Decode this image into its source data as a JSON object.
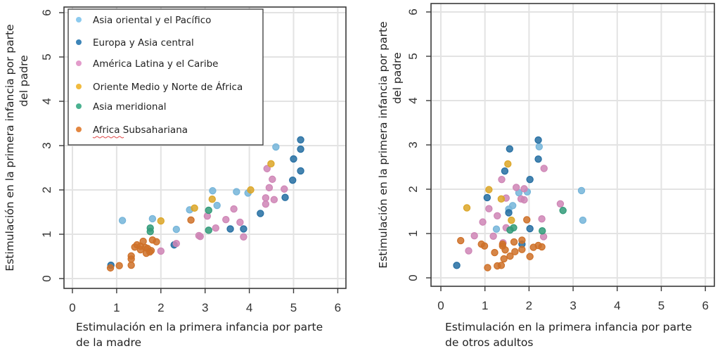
{
  "chart_data": [
    {
      "type": "scatter",
      "id": "madre",
      "title": "",
      "xlabel": [
        "Estimulación en la primera infancia por parte",
        "de la madre"
      ],
      "ylabel": [
        "Estimulación en la primera infancia por parte",
        "del padre"
      ],
      "xlim": [
        0,
        6
      ],
      "ylim": [
        0,
        6
      ],
      "xticks": [
        "0",
        "1",
        "2",
        "3",
        "4",
        "5",
        "6"
      ],
      "yticks": [
        "0",
        "1",
        "2",
        "3",
        "4",
        "5",
        "6"
      ],
      "grid": true,
      "legend_position": "top-left",
      "series": [
        {
          "name": "Asia oriental y el Pacífico",
          "color": "#7fc4ec",
          "points": [
            [
              4.6,
              2.97
            ],
            [
              3.97,
              1.93
            ],
            [
              3.71,
              1.96
            ],
            [
              3.17,
              1.98
            ],
            [
              3.27,
              1.65
            ],
            [
              1.13,
              1.31
            ],
            [
              1.81,
              1.35
            ],
            [
              2.35,
              1.11
            ],
            [
              2.65,
              1.55
            ]
          ]
        },
        {
          "name": "Europa y Asia central",
          "color": "#2878b0",
          "points": [
            [
              5.16,
              3.13
            ],
            [
              5.16,
              2.92
            ],
            [
              5.0,
              2.7
            ],
            [
              5.16,
              2.43
            ],
            [
              4.98,
              2.22
            ],
            [
              4.81,
              1.83
            ],
            [
              4.25,
              1.47
            ],
            [
              3.57,
              1.12
            ],
            [
              3.87,
              1.12
            ],
            [
              2.3,
              0.76
            ],
            [
              0.87,
              0.3
            ]
          ]
        },
        {
          "name": "América Latina y el Caribe",
          "color": "#e091c5",
          "points": [
            [
              4.4,
              2.48
            ],
            [
              4.52,
              2.24
            ],
            [
              4.45,
              2.05
            ],
            [
              4.79,
              2.02
            ],
            [
              4.37,
              1.82
            ],
            [
              4.56,
              1.78
            ],
            [
              4.37,
              1.68
            ],
            [
              3.05,
              1.41
            ],
            [
              3.65,
              1.57
            ],
            [
              3.47,
              1.33
            ],
            [
              3.79,
              1.27
            ],
            [
              3.24,
              1.14
            ],
            [
              3.87,
              0.94
            ],
            [
              2.86,
              0.97
            ],
            [
              2.89,
              0.95
            ],
            [
              2.35,
              0.79
            ],
            [
              2.0,
              0.62
            ]
          ]
        },
        {
          "name": "Oriente Medio y Norte de África",
          "color": "#efb42a",
          "points": [
            [
              4.49,
              2.59
            ],
            [
              4.03,
              2.0
            ],
            [
              3.16,
              1.79
            ],
            [
              2.0,
              1.3
            ],
            [
              2.76,
              1.59
            ]
          ]
        },
        {
          "name": "Asia meridional",
          "color": "#36a884",
          "points": [
            [
              3.08,
              1.54
            ],
            [
              3.08,
              1.09
            ],
            [
              1.76,
              1.14
            ],
            [
              1.76,
              1.06
            ]
          ]
        },
        {
          "name": "Africa Subsahariana",
          "color": "#e07a2c",
          "points": [
            [
              2.68,
              1.32
            ],
            [
              1.41,
              0.71
            ],
            [
              1.46,
              0.76
            ],
            [
              1.54,
              0.73
            ],
            [
              1.6,
              0.84
            ],
            [
              1.81,
              0.87
            ],
            [
              1.9,
              0.83
            ],
            [
              1.54,
              0.65
            ],
            [
              1.65,
              0.7
            ],
            [
              1.7,
              0.68
            ],
            [
              1.78,
              0.63
            ],
            [
              1.67,
              0.57
            ],
            [
              1.75,
              0.6
            ],
            [
              1.33,
              0.51
            ],
            [
              1.33,
              0.44
            ],
            [
              1.33,
              0.3
            ],
            [
              1.06,
              0.29
            ],
            [
              0.86,
              0.24
            ]
          ]
        }
      ]
    },
    {
      "type": "scatter",
      "id": "otros",
      "title": "",
      "xlabel": [
        "Estimulación en la primera infancia por parte",
        "de otros adultos"
      ],
      "ylabel": [
        "Estimulación en la primera infancia por parte",
        "del padre"
      ],
      "xlim": [
        0,
        6
      ],
      "ylim": [
        0,
        6
      ],
      "xticks": [
        "0",
        "1",
        "2",
        "3",
        "4",
        "5",
        "6"
      ],
      "yticks": [
        "0",
        "1",
        "2",
        "3",
        "4",
        "5",
        "6"
      ],
      "grid": true,
      "series": [
        {
          "name": "Asia oriental y el Pacífico",
          "color": "#7fc4ec",
          "points": [
            [
              2.23,
              2.96
            ],
            [
              3.19,
              1.97
            ],
            [
              1.77,
              1.92
            ],
            [
              1.96,
              1.94
            ],
            [
              1.63,
              1.63
            ],
            [
              1.54,
              1.55
            ],
            [
              3.22,
              1.3
            ],
            [
              1.26,
              1.1
            ]
          ]
        },
        {
          "name": "Europa y Asia central",
          "color": "#2878b0",
          "points": [
            [
              2.21,
              3.11
            ],
            [
              1.56,
              2.91
            ],
            [
              2.21,
              2.68
            ],
            [
              1.45,
              2.41
            ],
            [
              2.02,
              2.22
            ],
            [
              1.05,
              1.81
            ],
            [
              1.54,
              1.47
            ],
            [
              2.02,
              1.11
            ],
            [
              1.84,
              0.76
            ],
            [
              0.36,
              0.28
            ]
          ]
        },
        {
          "name": "América Latina y el Caribe",
          "color": "#e091c5",
          "points": [
            [
              2.34,
              2.47
            ],
            [
              1.38,
              2.22
            ],
            [
              1.71,
              2.04
            ],
            [
              1.89,
              2.01
            ],
            [
              1.48,
              1.8
            ],
            [
              1.82,
              1.78
            ],
            [
              1.89,
              1.76
            ],
            [
              2.71,
              1.67
            ],
            [
              1.09,
              1.56
            ],
            [
              1.28,
              1.4
            ],
            [
              2.29,
              1.33
            ],
            [
              0.95,
              1.26
            ],
            [
              1.48,
              1.13
            ],
            [
              0.76,
              0.95
            ],
            [
              1.19,
              0.94
            ],
            [
              2.33,
              0.93
            ],
            [
              1.41,
              0.79
            ],
            [
              0.63,
              0.61
            ]
          ]
        },
        {
          "name": "Oriente Medio y Norte de África",
          "color": "#efb42a",
          "points": [
            [
              1.52,
              2.57
            ],
            [
              1.09,
              1.99
            ],
            [
              1.37,
              1.78
            ],
            [
              0.59,
              1.58
            ],
            [
              1.6,
              1.3
            ]
          ]
        },
        {
          "name": "Asia meridional",
          "color": "#36a884",
          "points": [
            [
              2.77,
              1.52
            ],
            [
              1.65,
              1.13
            ],
            [
              1.57,
              1.08
            ],
            [
              2.3,
              1.06
            ]
          ]
        },
        {
          "name": "Africa Subsahariana",
          "color": "#e07a2c",
          "points": [
            [
              1.95,
              1.31
            ],
            [
              0.45,
              0.84
            ],
            [
              1.66,
              0.81
            ],
            [
              1.84,
              0.85
            ],
            [
              0.92,
              0.76
            ],
            [
              0.99,
              0.72
            ],
            [
              1.4,
              0.76
            ],
            [
              1.4,
              0.72
            ],
            [
              2.1,
              0.69
            ],
            [
              2.21,
              0.73
            ],
            [
              2.29,
              0.7
            ],
            [
              1.46,
              0.63
            ],
            [
              1.84,
              0.64
            ],
            [
              1.22,
              0.57
            ],
            [
              1.68,
              0.59
            ],
            [
              1.57,
              0.49
            ],
            [
              2.02,
              0.48
            ],
            [
              1.43,
              0.43
            ],
            [
              1.28,
              0.27
            ],
            [
              1.37,
              0.28
            ],
            [
              1.06,
              0.23
            ]
          ]
        }
      ]
    }
  ]
}
